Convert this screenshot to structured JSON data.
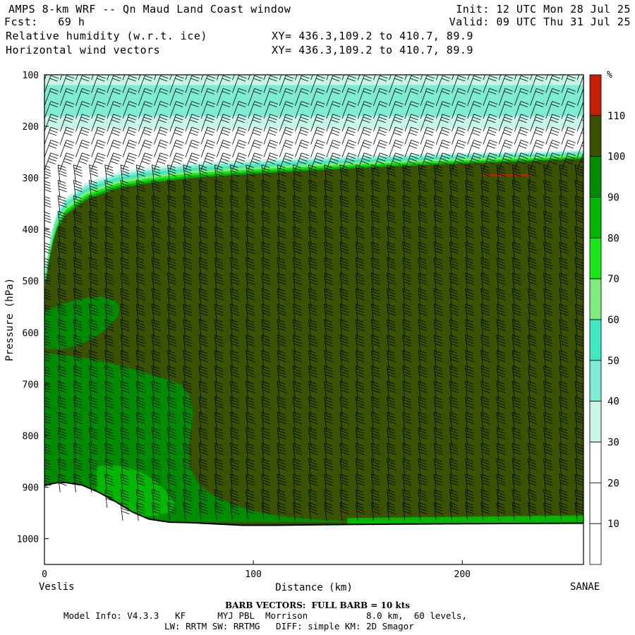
{
  "header": {
    "title": "AMPS 8-km WRF -- Qn Maud Land Coast window",
    "fcst": "Fcst:   69 h",
    "field1": "Relative humidity (w.r.t. ice)",
    "field2": "Horizontal wind vectors",
    "xy1": "XY= 436.3,109.2 to 410.7, 89.9",
    "xy2": "XY= 436.3,109.2 to 410.7, 89.9",
    "init": "Init: 12 UTC Mon 28 Jul 25",
    "valid": "Valid: 09 UTC Thu 31 Jul 25"
  },
  "footer": {
    "barb_note": "BARB VECTORS:  FULL BARB = 10 kts",
    "model_info": "Model Info: V4.3.3   KF      MYJ PBL  Morrison           8.0 km,  60 levels,",
    "model_info2": "LW: RRTM SW: RRTMG   DIFF: simple KM: 2D Smagor"
  },
  "colors": {
    "rh_10": "#ffffff",
    "rh_20": "#ffffff",
    "rh_30": "#ffffff",
    "rh_40": "#c8f7ea",
    "rh_50": "#7eecd2",
    "rh_60": "#3ee8c0",
    "rh_70": "#7dec7d",
    "rh_80": "#18e818",
    "rh_90": "#00b800",
    "rh_100": "#008c00",
    "rh_110": "#3a5200",
    "rh_over": "#c81e00",
    "terrain_line": "#000000"
  },
  "chart_data": {
    "type": "heatmap",
    "title": "Relative humidity (w.r.t. ice)",
    "xlabel": "Distance (km)",
    "ylabel": "Pressure (hPa)",
    "xlim": [
      0,
      258
    ],
    "ylim": [
      1050,
      100
    ],
    "y_scale": "linear, inverted",
    "x_ticks": [
      0,
      100,
      200
    ],
    "y_ticks": [
      100,
      200,
      300,
      400,
      500,
      600,
      700,
      800,
      900,
      1000
    ],
    "start_label": "Veslis",
    "end_label": "SANAE",
    "colorbar": {
      "unit": "%",
      "levels": [
        10,
        20,
        30,
        40,
        50,
        60,
        70,
        80,
        90,
        100,
        110
      ],
      "colors": [
        "#ffffff",
        "#ffffff",
        "#ffffff",
        "#c8f7ea",
        "#7eecd2",
        "#3ee8c0",
        "#7dec7d",
        "#18e818",
        "#00b800",
        "#008c00",
        "#3a5200",
        "#c81e00"
      ]
    },
    "terrain_surface_hpa": {
      "x": [
        0,
        5,
        10,
        18,
        26,
        34,
        42,
        50,
        60,
        70,
        80,
        95,
        110,
        130,
        160,
        200,
        258
      ],
      "p": [
        897,
        892,
        891,
        896,
        910,
        928,
        948,
        962,
        968,
        969,
        971,
        974,
        974,
        973,
        972,
        971,
        970
      ]
    },
    "tropopause_moist_top_hpa": {
      "x": [
        0,
        3,
        6,
        10,
        20,
        35,
        50,
        70,
        100,
        130,
        160,
        200,
        230,
        258
      ],
      "p": [
        520,
        440,
        400,
        372,
        342,
        320,
        310,
        300,
        292,
        285,
        279,
        272,
        268,
        263
      ]
    },
    "upper_moist_layer_hpa": {
      "p_top": 120,
      "p_bottom": 180,
      "rh": 45
    },
    "wind_barb_columns_km": [
      0,
      7.5,
      15,
      22.5,
      30,
      37.5,
      45,
      52.5,
      60,
      67.5,
      75,
      82.5,
      90,
      97.5,
      105,
      112.5,
      120,
      127.5,
      135,
      142.5,
      150,
      157.5,
      165,
      172.5,
      180,
      187.5,
      195,
      202.5,
      210,
      217.5,
      225,
      232.5,
      240,
      247.5,
      255
    ],
    "wind_barb_levels_hpa": [
      110,
      135,
      160,
      185,
      210,
      235,
      260,
      285,
      310,
      340,
      370,
      400,
      430,
      460,
      490,
      520,
      550,
      580,
      610,
      640,
      670,
      700,
      730,
      760,
      790,
      820,
      850,
      880,
      910,
      940,
      965
    ],
    "wind_speed_kts_by_level": [
      20,
      20,
      20,
      20,
      25,
      25,
      30,
      35,
      40,
      40,
      40,
      40,
      40,
      40,
      40,
      40,
      40,
      40,
      40,
      40,
      40,
      40,
      40,
      40,
      40,
      40,
      40,
      40,
      40,
      40,
      40
    ],
    "barb_unit": "FULL BARB = 10 kts"
  }
}
